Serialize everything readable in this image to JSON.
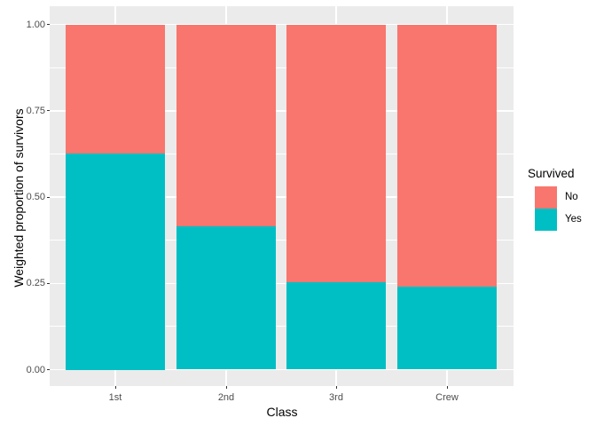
{
  "figure": {
    "background": "#FFFFFF",
    "panel_background": "#EBEBEB",
    "gridline_color": "#FFFFFF",
    "tick_color": "#333333",
    "axis_text_color": "#4D4D4D",
    "title_text_color": "#000000"
  },
  "chart_data": {
    "type": "bar",
    "subtype": "stacked-proportion",
    "title": "",
    "xlabel": "Class",
    "ylabel": "Weighted proportion of survivors",
    "categories": [
      "1st",
      "2nd",
      "3rd",
      "Crew"
    ],
    "series": [
      {
        "name": "No",
        "color": "#F8766D",
        "values": [
          0.375,
          0.586,
          0.748,
          0.76
        ]
      },
      {
        "name": "Yes",
        "color": "#00BFC4",
        "values": [
          0.625,
          0.414,
          0.252,
          0.24
        ]
      }
    ],
    "stack_bottom_to_top": [
      "Yes",
      "No"
    ],
    "ylim": [
      0,
      1
    ],
    "yticks": [
      0,
      0.25,
      0.5,
      0.75,
      1
    ],
    "ytick_labels": [
      "0.00",
      "0.25",
      "0.50",
      "0.75",
      "1.00"
    ],
    "minor_gridlines": [
      0.125,
      0.375,
      0.625,
      0.875
    ],
    "grid": "white-on-gray",
    "legend": {
      "position": "right",
      "title": "Survived",
      "entries": [
        {
          "label": "No",
          "color": "#F8766D"
        },
        {
          "label": "Yes",
          "color": "#00BFC4"
        }
      ]
    }
  }
}
